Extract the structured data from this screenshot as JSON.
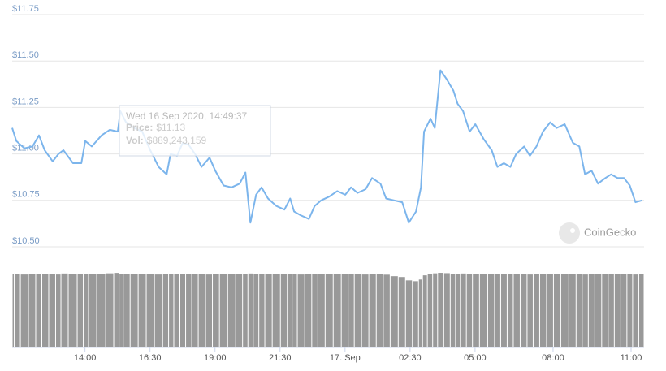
{
  "chart_data": {
    "type": "line",
    "x": [
      11.2,
      11.36,
      11.67,
      11.98,
      12.23,
      12.45,
      12.76,
      12.98,
      13.17,
      13.54,
      13.86,
      14.01,
      14.26,
      14.64,
      14.95,
      15.26,
      15.36,
      15.58,
      15.89,
      16.2,
      16.51,
      16.83,
      17.14,
      17.29,
      17.54,
      17.76,
      17.98,
      18.23,
      18.48,
      18.79,
      19.01,
      19.33,
      19.64,
      19.95,
      20.17,
      20.36,
      20.58,
      20.79,
      21.04,
      21.36,
      21.67,
      21.89,
      22.04,
      22.29,
      22.61,
      22.83,
      23.08,
      23.39,
      23.7,
      24.01,
      24.23,
      24.48,
      24.79,
      25.04,
      25.36,
      25.58,
      25.89,
      26.2,
      26.45,
      26.73,
      26.92,
      27.04,
      27.29,
      27.45,
      27.67,
      27.92,
      28.17,
      28.33,
      28.54,
      28.79,
      29.01,
      29.33,
      29.64,
      29.86,
      30.11,
      30.36,
      30.58,
      30.89,
      31.11,
      31.36,
      31.61,
      31.89,
      32.14,
      32.45,
      32.76,
      33.01,
      33.23,
      33.48,
      33.73,
      34.01,
      34.23,
      34.48,
      34.73,
      34.95,
      35.17,
      35.42
    ],
    "series": [
      {
        "color": "#7cb5ec",
        "values": [
          11.14,
          11.07,
          11.03,
          11.04,
          11.1,
          11.02,
          10.96,
          11.0,
          11.02,
          10.95,
          10.95,
          11.07,
          11.04,
          11.1,
          11.13,
          11.12,
          11.23,
          11.17,
          11.14,
          11.12,
          11.02,
          10.93,
          10.89,
          11.0,
          10.99,
          11.06,
          11.05,
          11.0,
          10.93,
          10.98,
          10.91,
          10.83,
          10.82,
          10.84,
          10.9,
          10.63,
          10.78,
          10.82,
          10.76,
          10.72,
          10.7,
          10.76,
          10.69,
          10.67,
          10.65,
          10.72,
          10.75,
          10.77,
          10.8,
          10.78,
          10.82,
          10.79,
          10.81,
          10.87,
          10.84,
          10.76,
          10.75,
          10.74,
          10.63,
          10.69,
          10.82,
          11.12,
          11.19,
          11.14,
          11.45,
          11.4,
          11.34,
          11.27,
          11.23,
          11.12,
          11.16,
          11.08,
          11.02,
          10.93,
          10.95,
          10.93,
          11.0,
          11.04,
          10.99,
          11.04,
          11.12,
          11.17,
          11.14,
          11.16,
          11.06,
          11.04,
          10.89,
          10.91,
          10.84,
          10.87,
          10.89,
          10.87,
          10.87,
          10.83,
          10.74,
          10.75
        ]
      }
    ],
    "volume": {
      "color": "#999999",
      "ylim": [
        0,
        900000000
      ],
      "values": [
        880000000,
        875000000,
        870000000,
        878000000,
        872000000,
        880000000,
        876000000,
        870000000,
        882000000,
        878000000,
        874000000,
        880000000,
        876000000,
        872000000,
        884000000,
        889243159,
        880000000,
        875000000,
        878000000,
        872000000,
        876000000,
        870000000,
        874000000,
        880000000,
        878000000,
        872000000,
        876000000,
        880000000,
        874000000,
        870000000,
        878000000,
        874000000,
        880000000,
        876000000,
        872000000,
        882000000,
        878000000,
        874000000,
        880000000,
        876000000,
        872000000,
        878000000,
        874000000,
        870000000,
        876000000,
        880000000,
        874000000,
        878000000,
        872000000,
        876000000,
        880000000,
        874000000,
        870000000,
        876000000,
        872000000,
        868000000,
        850000000,
        840000000,
        800000000,
        790000000,
        810000000,
        860000000,
        880000000,
        884000000,
        890000000,
        886000000,
        880000000,
        876000000,
        882000000,
        878000000,
        874000000,
        880000000,
        876000000,
        872000000,
        878000000,
        874000000,
        880000000,
        876000000,
        870000000,
        878000000,
        874000000,
        880000000,
        876000000,
        872000000,
        878000000,
        874000000,
        870000000,
        876000000,
        880000000,
        874000000,
        878000000,
        872000000,
        876000000,
        874000000,
        870000000,
        872000000
      ]
    },
    "xlim": [
      11.2,
      35.5
    ],
    "xticks": [
      {
        "value": 14,
        "label": "14:00"
      },
      {
        "value": 16.5,
        "label": "16:30"
      },
      {
        "value": 19,
        "label": "19:00"
      },
      {
        "value": 21.5,
        "label": "21:30"
      },
      {
        "value": 24,
        "label": "17. Sep"
      },
      {
        "value": 26.5,
        "label": "02:30"
      },
      {
        "value": 29,
        "label": "05:00"
      },
      {
        "value": 32,
        "label": "08:00"
      },
      {
        "value": 35,
        "label": "11:00"
      }
    ],
    "ylim": [
      10.5,
      11.75
    ],
    "yticks": [
      {
        "value": 10.5,
        "label": "$10.50"
      },
      {
        "value": 10.75,
        "label": "$10.75"
      },
      {
        "value": 11,
        "label": "$11.00"
      },
      {
        "value": 11.25,
        "label": "$11.25"
      },
      {
        "value": 11.5,
        "label": "$11.50"
      },
      {
        "value": 11.75,
        "label": "$11.75"
      }
    ],
    "grid": true,
    "tooltip": {
      "date": "Wed 16 Sep 2020, 14:49:37",
      "price_label": "Price:",
      "price": "$11.13",
      "vol_label": "Vol:",
      "vol": "$889,243,159"
    },
    "watermark": "CoinGecko"
  }
}
